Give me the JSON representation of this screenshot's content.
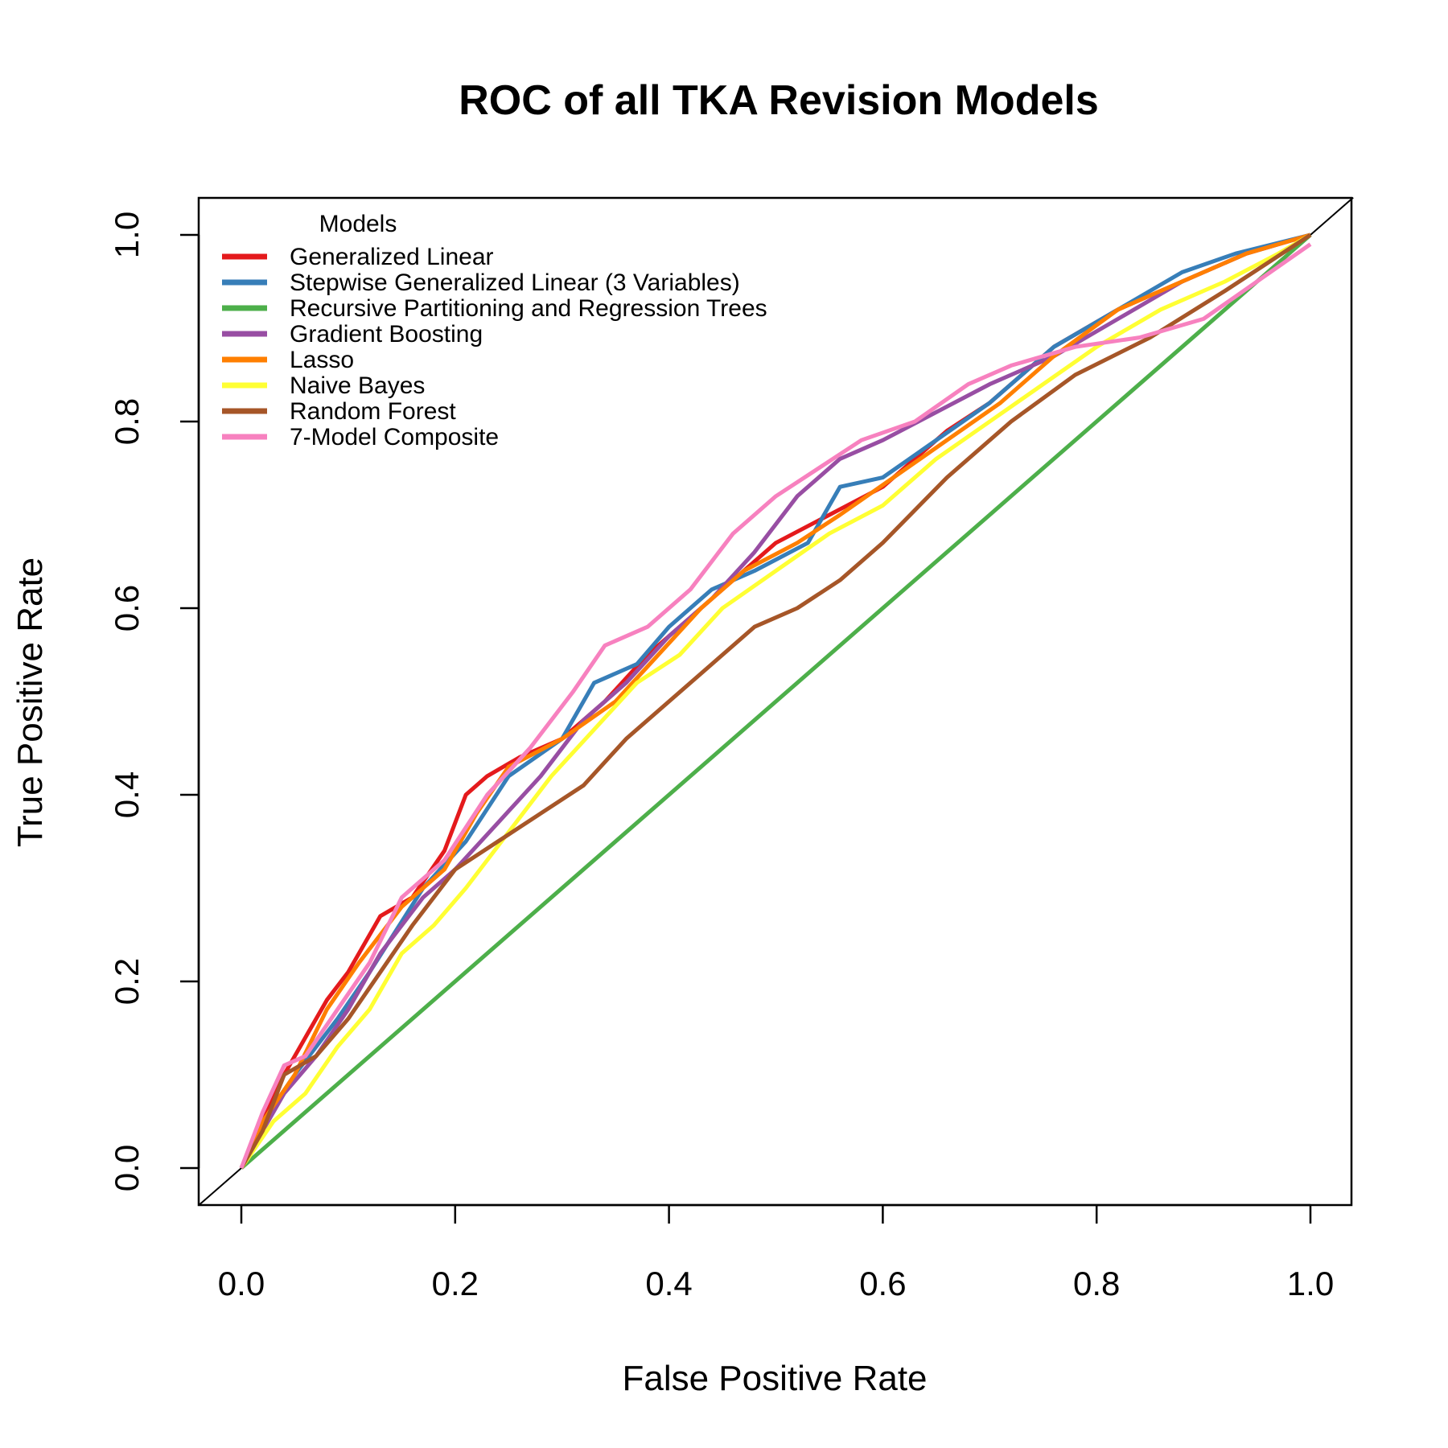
{
  "chart_data": {
    "type": "line",
    "title": "ROC of all TKA Revision Models",
    "xlabel": "False Positive Rate",
    "ylabel": "True Positive Rate",
    "xlim": [
      0,
      1
    ],
    "ylim": [
      0,
      1
    ],
    "xticks": [
      "0.0",
      "0.2",
      "0.4",
      "0.6",
      "0.8",
      "1.0"
    ],
    "yticks": [
      "0.0",
      "0.2",
      "0.4",
      "0.6",
      "0.8",
      "1.0"
    ],
    "grid": false,
    "legend": {
      "title": "Models",
      "position": "top-left"
    },
    "reference_line": {
      "from": [
        0,
        0
      ],
      "to": [
        1,
        1
      ],
      "color": "#000000"
    },
    "series": [
      {
        "name": "Generalized Linear",
        "color": "#e41a1c",
        "x": [
          0,
          0.02,
          0.04,
          0.06,
          0.08,
          0.1,
          0.13,
          0.16,
          0.19,
          0.21,
          0.23,
          0.26,
          0.3,
          0.34,
          0.38,
          0.42,
          0.46,
          0.5,
          0.55,
          0.6,
          0.66,
          0.7,
          0.76,
          0.82,
          0.88,
          0.94,
          1.0
        ],
        "y": [
          0,
          0.05,
          0.1,
          0.14,
          0.18,
          0.21,
          0.27,
          0.29,
          0.34,
          0.4,
          0.42,
          0.44,
          0.46,
          0.5,
          0.55,
          0.59,
          0.63,
          0.67,
          0.7,
          0.73,
          0.79,
          0.82,
          0.88,
          0.92,
          0.95,
          0.98,
          1.0
        ]
      },
      {
        "name": "Stepwise Generalized Linear (3 Variables)",
        "color": "#377eb8",
        "x": [
          0,
          0.02,
          0.05,
          0.09,
          0.12,
          0.17,
          0.21,
          0.25,
          0.3,
          0.33,
          0.37,
          0.4,
          0.44,
          0.48,
          0.53,
          0.56,
          0.6,
          0.65,
          0.7,
          0.76,
          0.82,
          0.88,
          0.93,
          1.0
        ],
        "y": [
          0,
          0.05,
          0.1,
          0.16,
          0.21,
          0.3,
          0.35,
          0.42,
          0.46,
          0.52,
          0.54,
          0.58,
          0.62,
          0.64,
          0.67,
          0.73,
          0.74,
          0.78,
          0.82,
          0.88,
          0.92,
          0.96,
          0.98,
          1.0
        ]
      },
      {
        "name": "Recursive Partitioning and Regression Trees",
        "color": "#4daf4a",
        "x": [
          0,
          1.0
        ],
        "y": [
          0,
          1.0
        ]
      },
      {
        "name": "Gradient Boosting",
        "color": "#984ea3",
        "x": [
          0,
          0.02,
          0.04,
          0.07,
          0.1,
          0.13,
          0.17,
          0.2,
          0.24,
          0.28,
          0.32,
          0.36,
          0.4,
          0.44,
          0.48,
          0.52,
          0.56,
          0.6,
          0.65,
          0.7,
          0.76,
          0.82,
          0.88,
          0.94,
          1.0
        ],
        "y": [
          0,
          0.04,
          0.08,
          0.12,
          0.17,
          0.23,
          0.29,
          0.32,
          0.37,
          0.42,
          0.48,
          0.52,
          0.57,
          0.61,
          0.66,
          0.72,
          0.76,
          0.78,
          0.81,
          0.84,
          0.87,
          0.91,
          0.95,
          0.98,
          1.0
        ]
      },
      {
        "name": "Lasso",
        "color": "#ff7f00",
        "x": [
          0,
          0.02,
          0.05,
          0.08,
          0.11,
          0.15,
          0.19,
          0.22,
          0.25,
          0.3,
          0.35,
          0.39,
          0.43,
          0.47,
          0.52,
          0.56,
          0.61,
          0.66,
          0.71,
          0.76,
          0.82,
          0.88,
          0.94,
          1.0
        ],
        "y": [
          0,
          0.05,
          0.1,
          0.17,
          0.22,
          0.28,
          0.32,
          0.38,
          0.43,
          0.46,
          0.5,
          0.55,
          0.6,
          0.64,
          0.67,
          0.7,
          0.74,
          0.78,
          0.82,
          0.87,
          0.92,
          0.95,
          0.98,
          1.0
        ]
      },
      {
        "name": "Naive Bayes",
        "color": "#ffff33",
        "x": [
          0,
          0.03,
          0.06,
          0.09,
          0.12,
          0.15,
          0.18,
          0.21,
          0.25,
          0.29,
          0.33,
          0.37,
          0.41,
          0.45,
          0.5,
          0.55,
          0.6,
          0.65,
          0.7,
          0.75,
          0.8,
          0.86,
          0.92,
          0.97,
          1.0
        ],
        "y": [
          0,
          0.05,
          0.08,
          0.13,
          0.17,
          0.23,
          0.26,
          0.3,
          0.36,
          0.42,
          0.47,
          0.52,
          0.55,
          0.6,
          0.64,
          0.68,
          0.71,
          0.76,
          0.8,
          0.84,
          0.88,
          0.92,
          0.95,
          0.98,
          1.0
        ]
      },
      {
        "name": "Random Forest",
        "color": "#a65628",
        "x": [
          0,
          0.02,
          0.04,
          0.07,
          0.1,
          0.13,
          0.16,
          0.2,
          0.24,
          0.28,
          0.32,
          0.36,
          0.4,
          0.44,
          0.48,
          0.52,
          0.56,
          0.6,
          0.66,
          0.72,
          0.78,
          0.85,
          0.92,
          1.0
        ],
        "y": [
          0,
          0.04,
          0.1,
          0.12,
          0.16,
          0.21,
          0.26,
          0.32,
          0.35,
          0.38,
          0.41,
          0.46,
          0.5,
          0.54,
          0.58,
          0.6,
          0.63,
          0.67,
          0.74,
          0.8,
          0.85,
          0.89,
          0.94,
          1.0
        ]
      },
      {
        "name": "7-Model Composite",
        "color": "#f781bf",
        "x": [
          0,
          0.02,
          0.04,
          0.06,
          0.09,
          0.12,
          0.15,
          0.19,
          0.23,
          0.27,
          0.31,
          0.34,
          0.38,
          0.42,
          0.46,
          0.5,
          0.54,
          0.58,
          0.63,
          0.68,
          0.72,
          0.78,
          0.84,
          0.9,
          0.95,
          1.0
        ],
        "y": [
          0,
          0.06,
          0.11,
          0.12,
          0.17,
          0.22,
          0.29,
          0.33,
          0.4,
          0.45,
          0.51,
          0.56,
          0.58,
          0.62,
          0.68,
          0.72,
          0.75,
          0.78,
          0.8,
          0.84,
          0.86,
          0.88,
          0.89,
          0.91,
          0.95,
          0.99
        ]
      }
    ]
  }
}
